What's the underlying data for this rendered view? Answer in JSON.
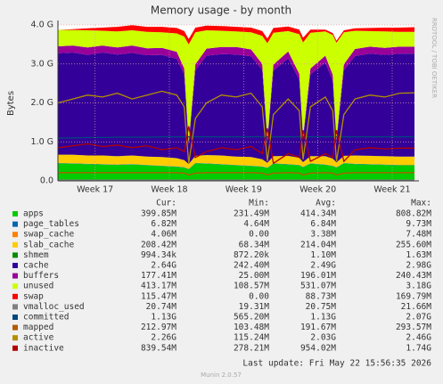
{
  "chart_data": {
    "type": "stacked-area",
    "title": "Memory usage - by month",
    "y_label": "Bytes",
    "side_text": "RRDTOOL / TOBI OETIKER",
    "x": [
      17.0,
      17.2,
      17.4,
      17.6,
      17.8,
      18.0,
      18.2,
      18.4,
      18.6,
      18.7,
      18.76,
      18.85,
      19.0,
      19.2,
      19.4,
      19.6,
      19.75,
      19.82,
      19.9,
      20.1,
      20.25,
      20.3,
      20.4,
      20.6,
      20.7,
      20.75,
      20.85,
      21.0,
      21.2,
      21.4,
      21.6,
      21.8
    ],
    "xlim": [
      17.0,
      21.8
    ],
    "xticks": [
      {
        "value": 17.5,
        "label": "Week 17"
      },
      {
        "value": 18.5,
        "label": "Week 18"
      },
      {
        "value": 19.5,
        "label": "Week 19"
      },
      {
        "value": 20.5,
        "label": "Week 20"
      },
      {
        "value": 21.5,
        "label": "Week 21"
      }
    ],
    "ylim": [
      0,
      4
    ],
    "yticks": [
      {
        "value": 0,
        "label": "0.0"
      },
      {
        "value": 1,
        "label": "1.0 G"
      },
      {
        "value": 2,
        "label": "2.0 G"
      },
      {
        "value": 3,
        "label": "3.0 G"
      },
      {
        "value": 4,
        "label": "4.0 G"
      }
    ],
    "grid": true,
    "stat_headers": [
      "Cur:",
      "Min:",
      "Avg:",
      "Max:"
    ],
    "series": [
      {
        "name": "apps",
        "color": "#00cc00",
        "kind": "area",
        "cur": "399.85M",
        "min": "231.49M",
        "avg": "414.34M",
        "max": "808.82M",
        "values": [
          0.45,
          0.44,
          0.43,
          0.42,
          0.41,
          0.42,
          0.4,
          0.38,
          0.36,
          0.34,
          0.3,
          0.45,
          0.44,
          0.42,
          0.4,
          0.38,
          0.36,
          0.33,
          0.44,
          0.42,
          0.4,
          0.35,
          0.44,
          0.41,
          0.38,
          0.34,
          0.45,
          0.43,
          0.42,
          0.41,
          0.4,
          0.4
        ]
      },
      {
        "name": "page_tables",
        "color": "#0066b3",
        "kind": "area",
        "cur": "6.82M",
        "min": "4.64M",
        "avg": "6.84M",
        "max": "9.73M",
        "values": [
          0.007,
          0.007,
          0.007,
          0.007,
          0.007,
          0.007,
          0.007,
          0.007,
          0.007,
          0.007,
          0.007,
          0.007,
          0.007,
          0.007,
          0.007,
          0.007,
          0.007,
          0.007,
          0.007,
          0.007,
          0.007,
          0.007,
          0.007,
          0.007,
          0.007,
          0.007,
          0.007,
          0.007,
          0.007,
          0.007,
          0.007,
          0.007
        ]
      },
      {
        "name": "swap_cache",
        "color": "#ff8000",
        "kind": "area",
        "cur": "4.06M",
        "min": "0.00",
        "avg": "3.38M",
        "max": "7.48M",
        "values": [
          0.004,
          0.004,
          0.004,
          0.004,
          0.004,
          0.004,
          0.004,
          0.004,
          0.004,
          0.004,
          0.004,
          0.004,
          0.004,
          0.004,
          0.004,
          0.004,
          0.004,
          0.004,
          0.004,
          0.004,
          0.004,
          0.004,
          0.004,
          0.004,
          0.004,
          0.004,
          0.004,
          0.004,
          0.004,
          0.004,
          0.004,
          0.004
        ]
      },
      {
        "name": "slab_cache",
        "color": "#ffcc00",
        "kind": "area",
        "cur": "208.42M",
        "min": "68.34M",
        "avg": "214.04M",
        "max": "255.60M",
        "values": [
          0.21,
          0.22,
          0.21,
          0.22,
          0.21,
          0.22,
          0.21,
          0.22,
          0.21,
          0.18,
          0.12,
          0.18,
          0.21,
          0.22,
          0.21,
          0.22,
          0.18,
          0.12,
          0.18,
          0.21,
          0.18,
          0.12,
          0.18,
          0.21,
          0.18,
          0.12,
          0.18,
          0.21,
          0.21,
          0.21,
          0.21,
          0.21
        ]
      },
      {
        "name": "shmem",
        "color": "#008f00",
        "kind": "area",
        "cur": "994.34k",
        "min": "872.20k",
        "avg": "1.10M",
        "max": "1.63M",
        "values": [
          0.001,
          0.001,
          0.001,
          0.001,
          0.001,
          0.001,
          0.001,
          0.001,
          0.001,
          0.001,
          0.001,
          0.001,
          0.001,
          0.001,
          0.001,
          0.001,
          0.001,
          0.001,
          0.001,
          0.001,
          0.001,
          0.001,
          0.001,
          0.001,
          0.001,
          0.001,
          0.001,
          0.001,
          0.001,
          0.001,
          0.001,
          0.001
        ]
      },
      {
        "name": "cache",
        "color": "#330099",
        "kind": "area",
        "cur": "2.64G",
        "min": "242.40M",
        "avg": "2.49G",
        "max": "2.98G",
        "values": [
          2.6,
          2.62,
          2.58,
          2.64,
          2.61,
          2.63,
          2.6,
          2.62,
          2.55,
          2.2,
          0.5,
          2.2,
          2.55,
          2.6,
          2.62,
          2.58,
          2.3,
          0.55,
          2.2,
          2.5,
          2.0,
          0.6,
          2.1,
          2.4,
          2.0,
          0.55,
          2.2,
          2.55,
          2.62,
          2.6,
          2.64,
          2.64
        ]
      },
      {
        "name": "buffers",
        "color": "#990099",
        "kind": "area",
        "cur": "177.41M",
        "min": "25.00M",
        "avg": "196.01M",
        "max": "240.43M",
        "values": [
          0.18,
          0.18,
          0.19,
          0.18,
          0.18,
          0.19,
          0.18,
          0.18,
          0.18,
          0.15,
          0.05,
          0.15,
          0.18,
          0.18,
          0.19,
          0.18,
          0.15,
          0.05,
          0.15,
          0.18,
          0.15,
          0.05,
          0.15,
          0.18,
          0.15,
          0.05,
          0.15,
          0.18,
          0.18,
          0.18,
          0.18,
          0.18
        ]
      },
      {
        "name": "unused",
        "color": "#ccff00",
        "kind": "area",
        "cur": "413.17M",
        "min": "108.57M",
        "avg": "531.07M",
        "max": "3.18G",
        "values": [
          0.42,
          0.4,
          0.44,
          0.38,
          0.41,
          0.39,
          0.42,
          0.4,
          0.47,
          0.82,
          2.52,
          0.82,
          0.47,
          0.42,
          0.4,
          0.44,
          0.72,
          2.47,
          0.82,
          0.52,
          1.02,
          2.42,
          0.92,
          0.62,
          1.02,
          2.47,
          0.82,
          0.47,
          0.4,
          0.42,
          0.38,
          0.38
        ]
      },
      {
        "name": "swap",
        "color": "#ff0000",
        "kind": "area",
        "cur": "115.47M",
        "min": "0.00",
        "avg": "88.73M",
        "max": "169.79M",
        "values": [
          0.0,
          0.02,
          0.05,
          0.08,
          0.12,
          0.13,
          0.13,
          0.14,
          0.14,
          0.14,
          0.14,
          0.12,
          0.12,
          0.12,
          0.12,
          0.12,
          0.12,
          0.12,
          0.12,
          0.12,
          0.12,
          0.12,
          0.08,
          0.05,
          0.05,
          0.05,
          0.05,
          0.06,
          0.08,
          0.1,
          0.11,
          0.12
        ]
      },
      {
        "name": "vmalloc_used",
        "color": "#808080",
        "kind": "line",
        "cur": "20.74M",
        "min": "19.31M",
        "avg": "20.75M",
        "max": "21.66M",
        "values": [
          0.02,
          0.02,
          0.02,
          0.02,
          0.02,
          0.02,
          0.02,
          0.02,
          0.02,
          0.02,
          0.02,
          0.02,
          0.02,
          0.02,
          0.02,
          0.02,
          0.02,
          0.02,
          0.02,
          0.02,
          0.02,
          0.02,
          0.02,
          0.02,
          0.02,
          0.02,
          0.02,
          0.02,
          0.02,
          0.02,
          0.02,
          0.02
        ]
      },
      {
        "name": "committed",
        "color": "#00487d",
        "kind": "line",
        "cur": "1.13G",
        "min": "565.20M",
        "avg": "1.13G",
        "max": "2.07G",
        "values": [
          1.1,
          1.1,
          1.11,
          1.11,
          1.12,
          1.12,
          1.12,
          1.13,
          1.13,
          1.13,
          1.13,
          1.13,
          1.13,
          1.13,
          1.13,
          1.13,
          1.13,
          1.13,
          1.13,
          1.13,
          1.13,
          1.13,
          1.13,
          1.13,
          1.13,
          1.13,
          1.13,
          1.13,
          1.13,
          1.13,
          1.13,
          1.13
        ]
      },
      {
        "name": "mapped",
        "color": "#b35a00",
        "kind": "line",
        "cur": "212.97M",
        "min": "103.48M",
        "avg": "191.67M",
        "max": "293.57M",
        "values": [
          0.21,
          0.21,
          0.21,
          0.21,
          0.21,
          0.21,
          0.21,
          0.21,
          0.21,
          0.2,
          0.15,
          0.2,
          0.21,
          0.21,
          0.21,
          0.21,
          0.2,
          0.15,
          0.2,
          0.21,
          0.2,
          0.15,
          0.2,
          0.21,
          0.2,
          0.15,
          0.2,
          0.21,
          0.21,
          0.21,
          0.21,
          0.21
        ]
      },
      {
        "name": "active",
        "color": "#b38f00",
        "kind": "line",
        "cur": "2.26G",
        "min": "115.24M",
        "avg": "2.03G",
        "max": "2.46G",
        "values": [
          2.0,
          2.1,
          2.2,
          2.15,
          2.25,
          2.1,
          2.2,
          2.3,
          2.2,
          1.9,
          0.45,
          1.6,
          2.0,
          2.2,
          2.15,
          2.25,
          1.9,
          0.5,
          1.7,
          2.1,
          1.8,
          0.55,
          1.9,
          2.15,
          1.8,
          0.5,
          1.7,
          2.1,
          2.2,
          2.15,
          2.25,
          2.26
        ]
      },
      {
        "name": "inactive",
        "color": "#b30000",
        "kind": "line",
        "cur": "839.54M",
        "min": "278.21M",
        "avg": "954.02M",
        "max": "1.74G",
        "values": [
          0.85,
          0.9,
          0.95,
          0.88,
          0.92,
          0.85,
          0.9,
          0.8,
          0.85,
          0.75,
          1.4,
          0.6,
          0.75,
          0.85,
          0.8,
          0.88,
          0.7,
          1.35,
          0.45,
          0.7,
          0.6,
          1.3,
          0.5,
          0.7,
          0.6,
          1.3,
          0.5,
          0.8,
          0.85,
          0.82,
          0.84,
          0.84
        ]
      }
    ],
    "last_update": "Last update: Fri May 22 15:56:35 2026",
    "footer": "Munin 2.0.57"
  }
}
